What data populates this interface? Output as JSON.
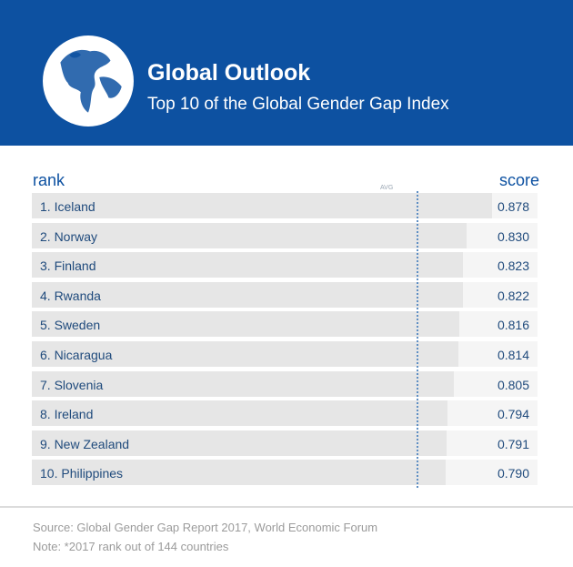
{
  "header": {
    "title": "Global Outlook",
    "subtitle": "Top 10 of the Global Gender Gap Index"
  },
  "columns": {
    "rank": "rank",
    "score": "score",
    "avg": "AVG"
  },
  "chart_data": {
    "type": "bar",
    "orientation": "horizontal",
    "title": "Top 10 of the Global Gender Gap Index",
    "categories": [
      "1. Iceland",
      "2. Norway",
      "3. Finland",
      "4. Rwanda",
      "5. Sweden",
      "6. Nicaragua",
      "7. Slovenia",
      "8. Ireland",
      "9. New Zealand",
      "10. Philippines"
    ],
    "values": [
      0.878,
      0.83,
      0.823,
      0.822,
      0.816,
      0.814,
      0.805,
      0.794,
      0.791,
      0.79
    ],
    "value_labels": [
      "0.878",
      "0.830",
      "0.823",
      "0.822",
      "0.816",
      "0.814",
      "0.805",
      "0.794",
      "0.791",
      "0.790"
    ],
    "xlim": [
      0,
      0.965
    ],
    "avg_line_value": 0.734,
    "grid": false
  },
  "footer": {
    "source": "Source: Global Gender Gap Report 2017, World Economic Forum",
    "note": "Note: *2017 rank out of 144 countries"
  },
  "colors": {
    "brand_blue": "#0d51a1",
    "bar": "#e6e6e6",
    "track": "#f5f5f5",
    "avg_line": "#5f8fc4"
  }
}
